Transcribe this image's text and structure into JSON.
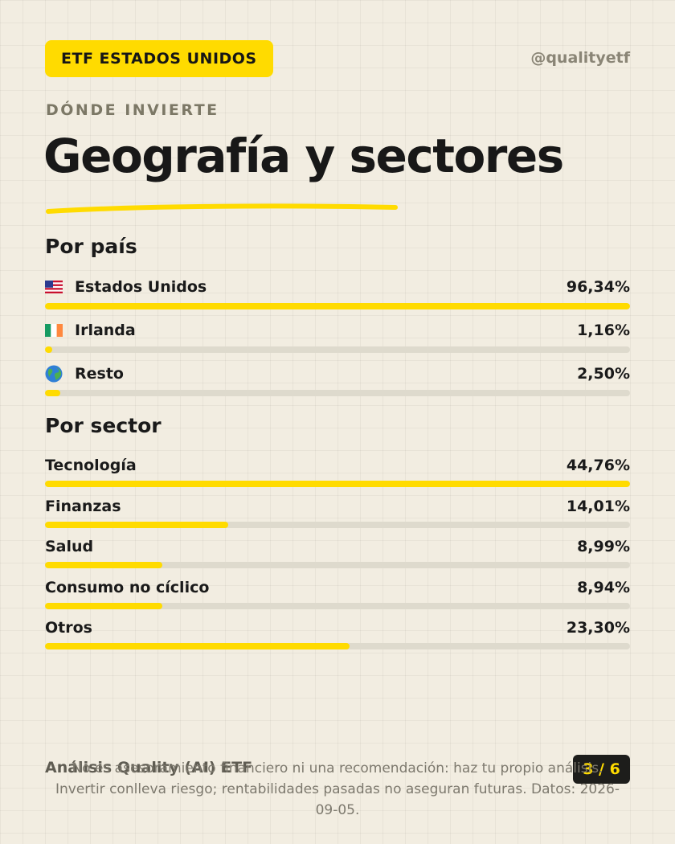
{
  "header": {
    "badge": "ETF ESTADOS UNIDOS",
    "handle": "@qualityetf"
  },
  "kicker": "DÓNDE INVIERTE",
  "title": "Geografía y sectores",
  "colors": {
    "accent": "#ffdb00",
    "background": "#f2ede1",
    "track": "#dedacd"
  },
  "countries": {
    "title": "Por país",
    "items": [
      {
        "icon": "us-flag-icon",
        "label": "Estados Unidos",
        "value": "96,34%",
        "fraction": 1.0
      },
      {
        "icon": "ireland-flag-icon",
        "label": "Irlanda",
        "value": "1,16%",
        "fraction": 0.012
      },
      {
        "icon": "globe-icon",
        "label": "Resto",
        "value": "2,50%",
        "fraction": 0.026
      }
    ]
  },
  "sectors": {
    "title": "Por sector",
    "items": [
      {
        "label": "Tecnología",
        "value": "44,76%",
        "fraction": 1.0
      },
      {
        "label": "Finanzas",
        "value": "14,01%",
        "fraction": 0.313
      },
      {
        "label": "Salud",
        "value": "8,99%",
        "fraction": 0.201
      },
      {
        "label": "Consumo no cíclico",
        "value": "8,94%",
        "fraction": 0.2
      },
      {
        "label": "Otros",
        "value": "23,30%",
        "fraction": 0.52
      }
    ]
  },
  "footer": {
    "brand": "Análisis Quality (AI) ETF",
    "page": "3 / 6",
    "disclaimer": "No es asesoramiento financiero ni una recomendación: haz tu propio análisis. Invertir conlleva riesgo; rentabilidades pasadas no aseguran futuras. Datos: 2026-09-05."
  }
}
